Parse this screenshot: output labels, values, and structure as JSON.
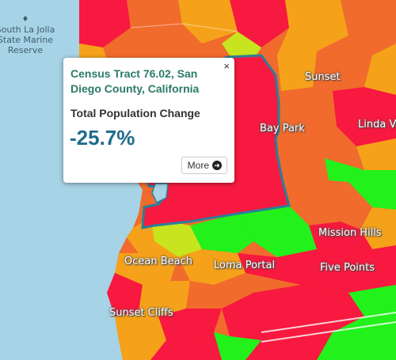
{
  "map": {
    "water_label": "South La Jolla State Marine Reserve",
    "places": {
      "sunset": "Sunset",
      "bay_park": "Bay Park",
      "linda_vista": "Linda V",
      "mission_hills": "Mission Hills",
      "ocean_beach": "Ocean Beach",
      "loma_portal": "Loma Portal",
      "five_points": "Five Points",
      "sunset_cliffs": "Sunset Cliffs"
    },
    "colors": {
      "water": "#a7d3e6",
      "decline_strong": "#f7193f",
      "decline": "#f06b2c",
      "slight_decline": "#f5a21a",
      "slight_growth": "#c8e41e",
      "growth": "#22f11c",
      "selected_outline": "#2a7f9a"
    }
  },
  "popup": {
    "title": "Census Tract 76.02, San Diego County, California",
    "metric_label": "Total Population Change",
    "metric_value": "-25.7%",
    "close_symbol": "×",
    "more_label": "More",
    "more_icon": "arrow-right-circle-icon"
  }
}
